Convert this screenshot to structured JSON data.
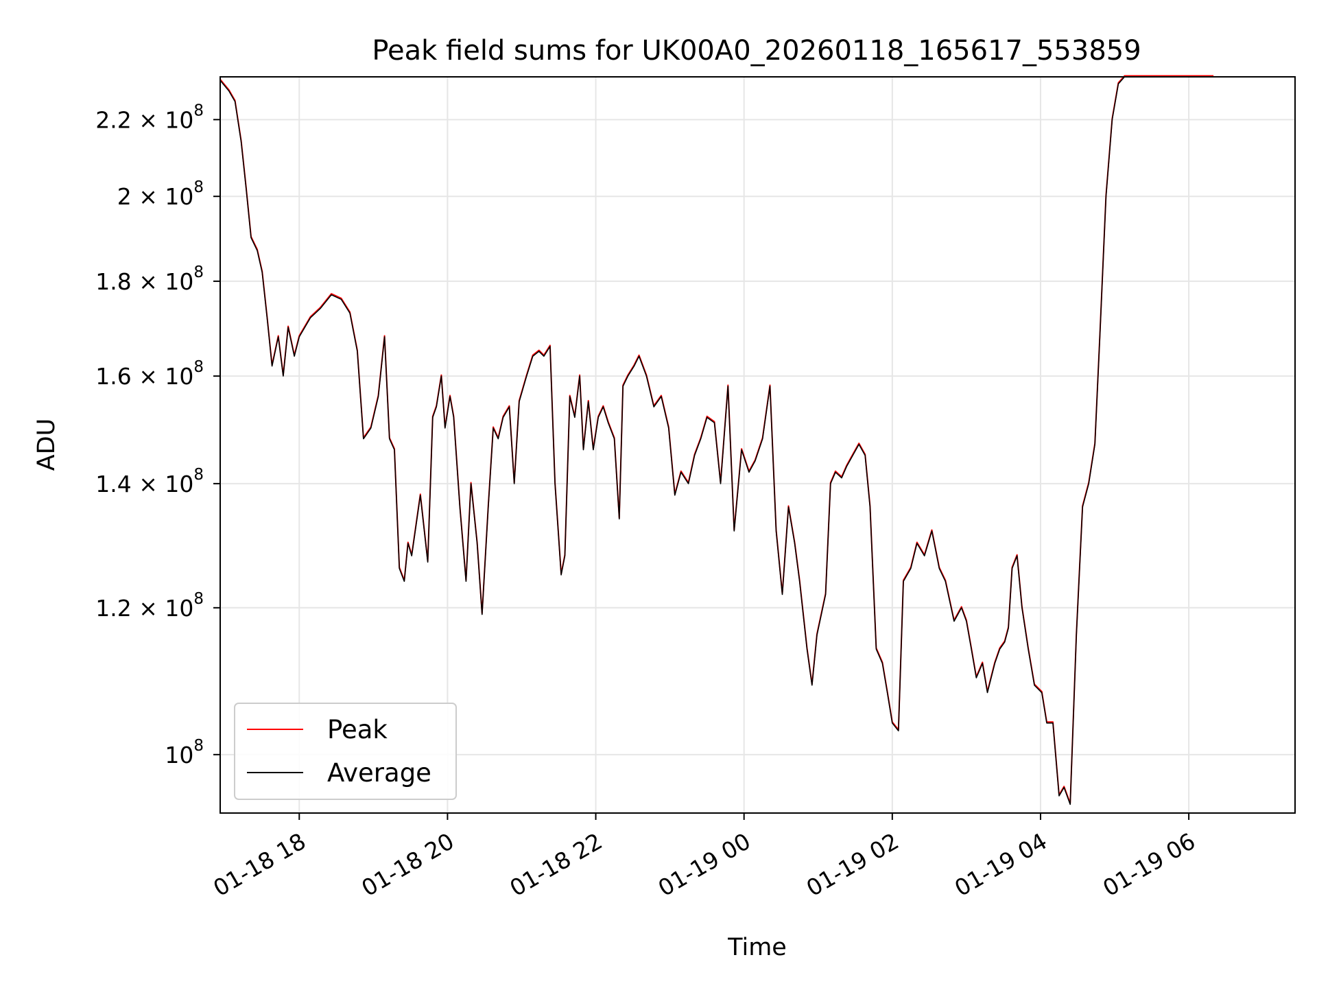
{
  "chart_data": {
    "type": "line",
    "title": "Peak field sums for UK00A0_20260118_165617_553859",
    "xlabel": "Time",
    "ylabel": "ADU",
    "x_tick_labels": [
      "01-18 18",
      "01-18 20",
      "01-18 22",
      "01-19 00",
      "01-19 02",
      "01-19 04",
      "01-19 06"
    ],
    "x_tick_values": [
      "2026-01-18 18:00",
      "2026-01-18 20:00",
      "2026-01-18 22:00",
      "2026-01-19 00:00",
      "2026-01-19 02:00",
      "2026-01-19 04:00",
      "2026-01-19 06:00"
    ],
    "xlim": [
      "2026-01-18 16:56",
      "2026-01-19 07:26"
    ],
    "y_scale": "log",
    "ylim": [
      93000000,
      232000000
    ],
    "y_ticks": [
      {
        "value": 100000000,
        "mant": "",
        "exp": "8"
      },
      {
        "value": 120000000,
        "mant": "1.2",
        "exp": "8"
      },
      {
        "value": 140000000,
        "mant": "1.4",
        "exp": "8"
      },
      {
        "value": 160000000,
        "mant": "1.6",
        "exp": "8"
      },
      {
        "value": 180000000,
        "mant": "1.8",
        "exp": "8"
      },
      {
        "value": 200000000,
        "mant": "2",
        "exp": "8"
      },
      {
        "value": 220000000,
        "mant": "2.2",
        "exp": "8"
      }
    ],
    "grid": true,
    "legend": {
      "position": "lower-left",
      "entries": [
        "Peak",
        "Average"
      ]
    },
    "series": [
      {
        "name": "Peak",
        "color": "#ff0000"
      },
      {
        "name": "Average",
        "color": "#000000"
      }
    ],
    "x": [
      "2026-01-18 16:56",
      "2026-01-18 17:03",
      "2026-01-18 17:08",
      "2026-01-18 17:13",
      "2026-01-18 17:17",
      "2026-01-18 17:21",
      "2026-01-18 17:26",
      "2026-01-18 17:30",
      "2026-01-18 17:34",
      "2026-01-18 17:38",
      "2026-01-18 17:43",
      "2026-01-18 17:47",
      "2026-01-18 17:51",
      "2026-01-18 17:56",
      "2026-01-18 18:00",
      "2026-01-18 18:09",
      "2026-01-18 18:17",
      "2026-01-18 18:26",
      "2026-01-18 18:34",
      "2026-01-18 18:41",
      "2026-01-18 18:47",
      "2026-01-18 18:52",
      "2026-01-18 18:58",
      "2026-01-18 19:04",
      "2026-01-18 19:09",
      "2026-01-18 19:13",
      "2026-01-18 19:17",
      "2026-01-18 19:21",
      "2026-01-18 19:25",
      "2026-01-18 19:28",
      "2026-01-18 19:31",
      "2026-01-18 19:38",
      "2026-01-18 19:44",
      "2026-01-18 19:48",
      "2026-01-18 19:51",
      "2026-01-18 19:55",
      "2026-01-18 19:58",
      "2026-01-18 20:02",
      "2026-01-18 20:05",
      "2026-01-18 20:10",
      "2026-01-18 20:15",
      "2026-01-18 20:19",
      "2026-01-18 20:24",
      "2026-01-18 20:28",
      "2026-01-18 20:33",
      "2026-01-18 20:37",
      "2026-01-18 20:41",
      "2026-01-18 20:45",
      "2026-01-18 20:50",
      "2026-01-18 20:54",
      "2026-01-18 20:58",
      "2026-01-18 21:04",
      "2026-01-18 21:09",
      "2026-01-18 21:14",
      "2026-01-18 21:18",
      "2026-01-18 21:23",
      "2026-01-18 21:27",
      "2026-01-18 21:32",
      "2026-01-18 21:35",
      "2026-01-18 21:39",
      "2026-01-18 21:43",
      "2026-01-18 21:47",
      "2026-01-18 21:50",
      "2026-01-18 21:54",
      "2026-01-18 21:58",
      "2026-01-18 22:02",
      "2026-01-18 22:06",
      "2026-01-18 22:10",
      "2026-01-18 22:15",
      "2026-01-18 22:19",
      "2026-01-18 22:22",
      "2026-01-18 22:26",
      "2026-01-18 22:31",
      "2026-01-18 22:35",
      "2026-01-18 22:41",
      "2026-01-18 22:47",
      "2026-01-18 22:53",
      "2026-01-18 22:59",
      "2026-01-18 23:04",
      "2026-01-18 23:09",
      "2026-01-18 23:15",
      "2026-01-18 23:20",
      "2026-01-18 23:25",
      "2026-01-18 23:30",
      "2026-01-18 23:36",
      "2026-01-18 23:41",
      "2026-01-18 23:47",
      "2026-01-18 23:52",
      "2026-01-18 23:58",
      "2026-01-19 00:04",
      "2026-01-19 00:09",
      "2026-01-19 00:15",
      "2026-01-19 00:21",
      "2026-01-19 00:26",
      "2026-01-19 00:31",
      "2026-01-19 00:36",
      "2026-01-19 00:41",
      "2026-01-19 00:45",
      "2026-01-19 00:51",
      "2026-01-19 00:55",
      "2026-01-19 00:59",
      "2026-01-19 01:06",
      "2026-01-19 01:10",
      "2026-01-19 01:14",
      "2026-01-19 01:19",
      "2026-01-19 01:23",
      "2026-01-19 01:28",
      "2026-01-19 01:33",
      "2026-01-19 01:38",
      "2026-01-19 01:42",
      "2026-01-19 01:47",
      "2026-01-19 01:52",
      "2026-01-19 01:56",
      "2026-01-19 02:00",
      "2026-01-19 02:05",
      "2026-01-19 02:09",
      "2026-01-19 02:15",
      "2026-01-19 02:20",
      "2026-01-19 02:26",
      "2026-01-19 02:32",
      "2026-01-19 02:38",
      "2026-01-19 02:43",
      "2026-01-19 02:50",
      "2026-01-19 02:56",
      "2026-01-19 03:00",
      "2026-01-19 03:04",
      "2026-01-19 03:08",
      "2026-01-19 03:13",
      "2026-01-19 03:17",
      "2026-01-19 03:23",
      "2026-01-19 03:27",
      "2026-01-19 03:31",
      "2026-01-19 03:34",
      "2026-01-19 03:37",
      "2026-01-19 03:41",
      "2026-01-19 03:45",
      "2026-01-19 03:50",
      "2026-01-19 03:55",
      "2026-01-19 04:01",
      "2026-01-19 04:05",
      "2026-01-19 04:10",
      "2026-01-19 04:15",
      "2026-01-19 04:19",
      "2026-01-19 04:24",
      "2026-01-19 04:29",
      "2026-01-19 04:34",
      "2026-01-19 04:39",
      "2026-01-19 04:44",
      "2026-01-19 04:48",
      "2026-01-19 04:53",
      "2026-01-19 04:58",
      "2026-01-19 05:03",
      "2026-01-19 05:08",
      "2026-01-19 05:13",
      "2026-01-19 05:17",
      "2026-01-19 05:21",
      "2026-01-19 05:26",
      "2026-01-19 05:30",
      "2026-01-19 05:35",
      "2026-01-19 05:40",
      "2026-01-19 05:44",
      "2026-01-19 05:48",
      "2026-01-19 05:52",
      "2026-01-19 05:55",
      "2026-01-19 05:58",
      "2026-01-19 06:01",
      "2026-01-19 06:04",
      "2026-01-19 06:07",
      "2026-01-19 06:10",
      "2026-01-19 06:13",
      "2026-01-19 06:16",
      "2026-01-19 06:20",
      "2026-01-19 06:24",
      "2026-01-19 06:27",
      "2026-01-19 06:30",
      "2026-01-19 06:34",
      "2026-01-19 06:38",
      "2026-01-19 06:43",
      "2026-01-19 06:48",
      "2026-01-19 06:53",
      "2026-01-19 06:57",
      "2026-01-19 07:02",
      "2026-01-19 07:08",
      "2026-01-19 07:14",
      "2026-01-19 07:20",
      "2026-01-19 07:26"
    ],
    "average": [
      231000000,
      228000000,
      225000000,
      214000000,
      202000000,
      190000000,
      187000000,
      182000000,
      172000000,
      162000000,
      168000000,
      160000000,
      170000000,
      164000000,
      168000000,
      172000000,
      174000000,
      177000000,
      176000000,
      173000000,
      165000000,
      148000000,
      150000000,
      156000000,
      168000000,
      148000000,
      146000000,
      126000000,
      124000000,
      130000000,
      128000000,
      138000000,
      127000000,
      152000000,
      154000000,
      160000000,
      150000000,
      156000000,
      152000000,
      136000000,
      124000000,
      140000000,
      130000000,
      119000000,
      136000000,
      150000000,
      148000000,
      152000000,
      154000000,
      140000000,
      155000000,
      160000000,
      164000000,
      165000000,
      164000000,
      166000000,
      140000000,
      125000000,
      128000000,
      156000000,
      152000000,
      160000000,
      146000000,
      155000000,
      146000000,
      152000000,
      154000000,
      151000000,
      148000000,
      134000000,
      158000000,
      160000000,
      162000000,
      164000000,
      160000000,
      154000000,
      156000000,
      150000000,
      138000000,
      142000000,
      140000000,
      145000000,
      148000000,
      152000000,
      151000000,
      140000000,
      158000000,
      132000000,
      146000000,
      142000000,
      144000000,
      148000000,
      158000000,
      132000000,
      122000000,
      136000000,
      130000000,
      124000000,
      114000000,
      109000000,
      116000000,
      122000000,
      140000000,
      142000000,
      141000000,
      143000000,
      145000000,
      147000000,
      145000000,
      136000000,
      114000000,
      112000000,
      108000000,
      104000000,
      103000000,
      124000000,
      126000000,
      130000000,
      128000000,
      132000000,
      126000000,
      124000000,
      118000000,
      120000000,
      118000000,
      114000000,
      110000000,
      112000000,
      108000000,
      112000000,
      114000000,
      115000000,
      117000000,
      126000000,
      128000000,
      120000000,
      114000000,
      109000000,
      108000000,
      104000000,
      104000000,
      95000000,
      96000000,
      94000000,
      116000000,
      136000000,
      140000000,
      147000000,
      168000000,
      200000000,
      220000000,
      230000000,
      232000000,
      232000000,
      232000000,
      232000000,
      232000000,
      232000000,
      232000000,
      232000000,
      232000000,
      232000000,
      232000000,
      232000000,
      232000000,
      232000000,
      232000000,
      232000000,
      232000000,
      232000000,
      232000000,
      232000000
    ],
    "annotations": []
  }
}
